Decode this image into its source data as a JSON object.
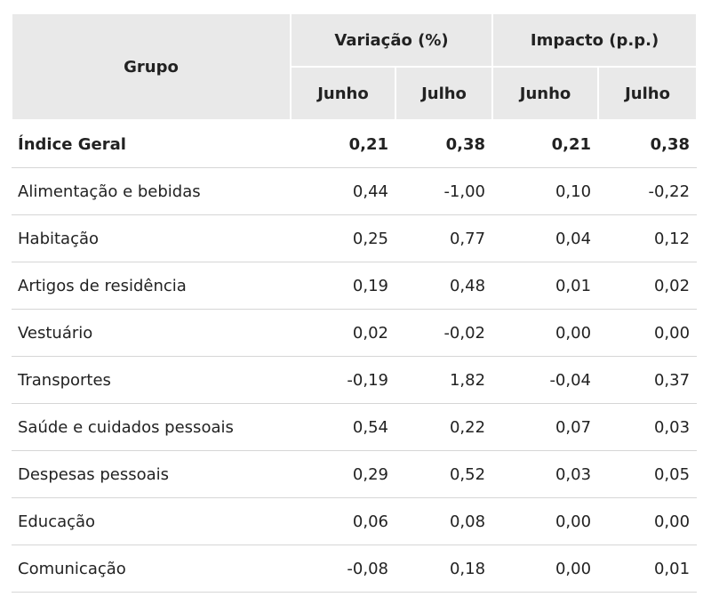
{
  "table": {
    "header": {
      "group": "Grupo",
      "spans": [
        "Variação (%)",
        "Impacto (p.p.)"
      ],
      "sub": [
        "Junho",
        "Julho",
        "Junho",
        "Julho"
      ]
    },
    "rows": [
      [
        "Índice Geral",
        "0,21",
        "0,38",
        "0,21",
        "0,38"
      ],
      [
        "Alimentação e bebidas",
        "0,44",
        "-1,00",
        "0,10",
        "-0,22"
      ],
      [
        "Habitação",
        "0,25",
        "0,77",
        "0,04",
        "0,12"
      ],
      [
        "Artigos de residência",
        "0,19",
        "0,48",
        "0,01",
        "0,02"
      ],
      [
        "Vestuário",
        "0,02",
        "-0,02",
        "0,00",
        "0,00"
      ],
      [
        "Transportes",
        "-0,19",
        "1,82",
        "-0,04",
        "0,37"
      ],
      [
        "Saúde e cuidados pessoais",
        "0,54",
        "0,22",
        "0,07",
        "0,03"
      ],
      [
        "Despesas pessoais",
        "0,29",
        "0,52",
        "0,03",
        "0,05"
      ],
      [
        "Educação",
        "0,06",
        "0,08",
        "0,00",
        "0,00"
      ],
      [
        "Comunicação",
        "-0,08",
        "0,18",
        "0,00",
        "0,01"
      ]
    ]
  }
}
